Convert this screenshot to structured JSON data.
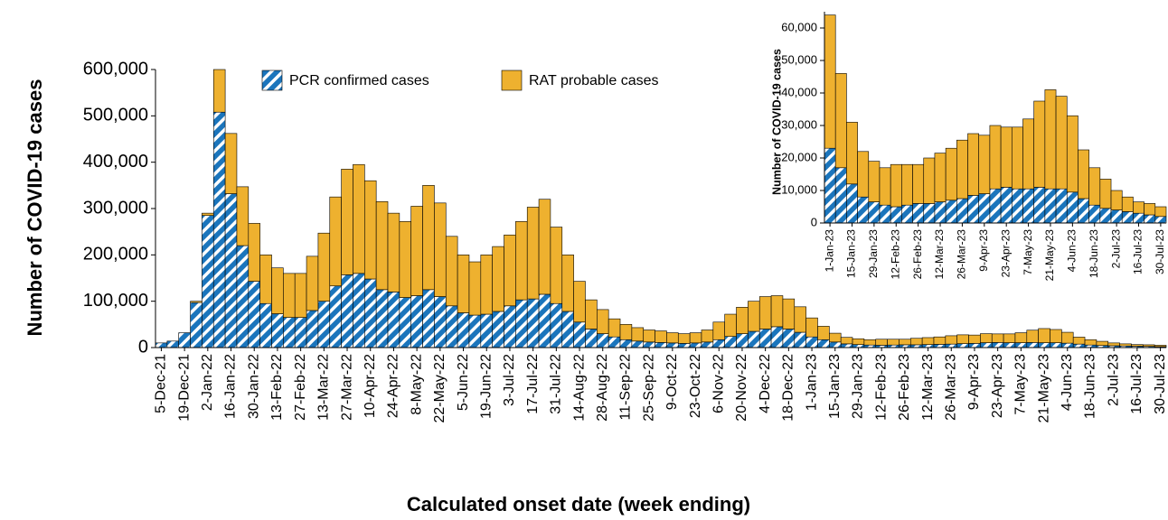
{
  "chart_data": [
    {
      "type": "stacked_bar",
      "y_label": "Number of COVID-19 cases",
      "x_label": "Calculated onset date (week ending)",
      "categories": [
        "5-Dec-21",
        null,
        "19-Dec-21",
        null,
        "2-Jan-22",
        null,
        "16-Jan-22",
        null,
        "30-Jan-22",
        null,
        "13-Feb-22",
        null,
        "27-Feb-22",
        null,
        "13-Mar-22",
        null,
        "27-Mar-22",
        null,
        "10-Apr-22",
        null,
        "24-Apr-22",
        null,
        "8-May-22",
        null,
        "22-May-22",
        null,
        "5-Jun-22",
        null,
        "19-Jun-22",
        null,
        "3-Jul-22",
        null,
        "17-Jul-22",
        null,
        "31-Jul-22",
        null,
        "14-Aug-22",
        null,
        "28-Aug-22",
        null,
        "11-Sep-22",
        null,
        "25-Sep-22",
        null,
        "9-Oct-22",
        null,
        "23-Oct-22",
        null,
        "6-Nov-22",
        null,
        "20-Nov-22",
        null,
        "4-Dec-22",
        null,
        "18-Dec-22",
        null,
        "1-Jan-23",
        null,
        "15-Jan-23",
        null,
        "29-Jan-23",
        null,
        "12-Feb-23",
        null,
        "26-Feb-23",
        null,
        "12-Mar-23",
        null,
        "26-Mar-23",
        null,
        "9-Apr-23",
        null,
        "23-Apr-23",
        null,
        "7-May-23",
        null,
        "21-May-23",
        null,
        "4-Jun-23",
        null,
        "18-Jun-23",
        null,
        "2-Jul-23",
        null,
        "16-Jul-23",
        null,
        "30-Jul-23"
      ],
      "series": [
        {
          "name": "PCR confirmed cases",
          "color": "#1b75bc",
          "hatch": true,
          "values": [
            10000,
            14000,
            32000,
            97000,
            285000,
            508000,
            332000,
            220000,
            143000,
            95000,
            73000,
            65000,
            65000,
            80000,
            100000,
            133000,
            157000,
            160000,
            148000,
            125000,
            120000,
            108000,
            112000,
            125000,
            110000,
            90000,
            75000,
            70000,
            72000,
            78000,
            90000,
            103000,
            105000,
            115000,
            95000,
            78000,
            55000,
            40000,
            30000,
            23000,
            17000,
            14000,
            12000,
            11000,
            10000,
            9000,
            10000,
            12000,
            17000,
            24000,
            30000,
            35000,
            40000,
            45000,
            40000,
            33000,
            23000,
            17000,
            12000,
            8000,
            6500,
            5500,
            5000,
            5500,
            6000,
            6000,
            6500,
            7000,
            7500,
            8500,
            9000,
            10500,
            11000,
            10500,
            10500,
            11000,
            10500,
            10500,
            9500,
            7500,
            5500,
            4500,
            4000,
            3500,
            3000,
            2500,
            2000
          ]
        },
        {
          "name": "RAT probable cases",
          "color": "#eeb12f",
          "values": [
            0,
            0,
            0,
            3000,
            5000,
            92000,
            130000,
            127000,
            125000,
            105000,
            99000,
            95000,
            95000,
            117000,
            147000,
            192000,
            228000,
            235000,
            212000,
            190000,
            170000,
            164000,
            193000,
            225000,
            202000,
            150000,
            125000,
            115000,
            128000,
            140000,
            153000,
            169000,
            198000,
            205000,
            165000,
            122000,
            88000,
            63000,
            52000,
            39000,
            33000,
            29000,
            26000,
            25000,
            22000,
            21000,
            22000,
            26000,
            38000,
            48000,
            57000,
            65000,
            70000,
            67000,
            65000,
            55000,
            41000,
            29000,
            19000,
            14000,
            12500,
            11500,
            13000,
            12500,
            12000,
            14000,
            15000,
            16000,
            18000,
            19000,
            18000,
            19500,
            18500,
            19000,
            21500,
            26500,
            30500,
            28500,
            23500,
            15000,
            11500,
            9000,
            6000,
            4500,
            3500,
            3500,
            3000
          ]
        }
      ],
      "ylim": [
        0,
        600000
      ],
      "yticks": [
        0,
        {
          "value": 100000,
          "label": "100,000"
        },
        {
          "value": 200000,
          "label": "200,000"
        },
        {
          "value": 300000,
          "label": "300,000"
        },
        {
          "value": 400000,
          "label": "400,000"
        },
        {
          "value": 500000,
          "label": "500,000"
        },
        {
          "value": 600000,
          "label": "600,000"
        }
      ],
      "legend": "top"
    },
    {
      "type": "stacked_bar",
      "y_label": "Number of COVID-19 cases",
      "categories": [
        "1-Jan-23",
        null,
        "15-Jan-23",
        null,
        "29-Jan-23",
        null,
        "12-Feb-23",
        null,
        "26-Feb-23",
        null,
        "12-Mar-23",
        null,
        "26-Mar-23",
        null,
        "9-Apr-23",
        null,
        "23-Apr-23",
        null,
        "7-May-23",
        null,
        "21-May-23",
        null,
        "4-Jun-23",
        null,
        "18-Jun-23",
        null,
        "2-Jul-23",
        null,
        "16-Jul-23",
        null,
        "30-Jul-23"
      ],
      "series": [
        {
          "color": "#1b75bc",
          "hatch": true,
          "values": [
            23000,
            17000,
            12000,
            8000,
            6500,
            5500,
            5000,
            5500,
            6000,
            6000,
            6500,
            7000,
            7500,
            8500,
            9000,
            10500,
            11000,
            10500,
            10500,
            11000,
            10500,
            10500,
            9500,
            7500,
            5500,
            4500,
            4000,
            3500,
            3000,
            2500,
            2000
          ]
        },
        {
          "color": "#eeb12f",
          "values": [
            41000,
            29000,
            19000,
            14000,
            12500,
            11500,
            13000,
            12500,
            12000,
            14000,
            15000,
            16000,
            18000,
            19000,
            18000,
            19500,
            18500,
            19000,
            21500,
            26500,
            30500,
            28500,
            23500,
            15000,
            11500,
            9000,
            6000,
            4500,
            3500,
            3500,
            3000
          ]
        }
      ],
      "ylim": [
        0,
        65000
      ],
      "yticks": [
        0,
        {
          "value": 10000,
          "label": "10,000"
        },
        {
          "value": 20000,
          "label": "20,000"
        },
        {
          "value": 30000,
          "label": "30,000"
        },
        {
          "value": 40000,
          "label": "40,000"
        },
        {
          "value": 50000,
          "label": "50,000"
        },
        {
          "value": 60000,
          "label": "60,000"
        }
      ]
    }
  ]
}
